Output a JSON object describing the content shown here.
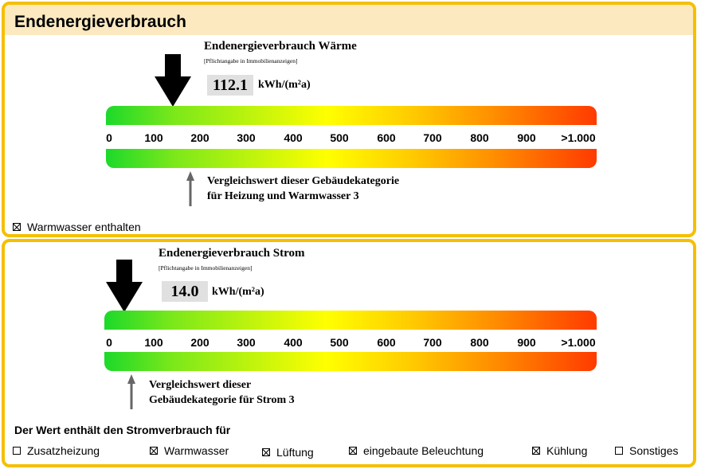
{
  "panel1": {
    "title": "Endenergieverbrauch",
    "heading": "Endenergieverbrauch Wärme",
    "note": "[Pflichtangabe in Immobilienanzeigen]",
    "value": "112.1",
    "unit": "kWh/(m²a)",
    "scale_labels": [
      "0",
      "100",
      "200",
      "300",
      "400",
      "500",
      "600",
      "700",
      "800",
      "900",
      ">1.000"
    ],
    "compare_line1": "Vergleichswert dieser Gebäudekategorie",
    "compare_line2": "für Heizung und Warmwasser 3",
    "warmwasser_label": "Warmwasser enthalten"
  },
  "panel2": {
    "heading": "Endenergieverbrauch Strom",
    "note": "[Pflichtangabe in Immobilienanzeigen]",
    "value": "14.0",
    "unit": "kWh/(m²a)",
    "scale_labels": [
      "0",
      "100",
      "200",
      "300",
      "400",
      "500",
      "600",
      "700",
      "800",
      "900",
      ">1.000"
    ],
    "compare_line1": "Vergleichswert dieser",
    "compare_line2": "Gebäudekategorie für Strom 3",
    "contains_heading": "Der Wert enthält den Stromverbrauch für",
    "options": [
      {
        "label": "Zusatzheizung",
        "checked": false
      },
      {
        "label": "Warmwasser",
        "checked": true
      },
      {
        "label": "Lüftung",
        "checked": true
      },
      {
        "label": "eingebaute Beleuchtung",
        "checked": true
      },
      {
        "label": "Kühlung",
        "checked": true
      },
      {
        "label": "Sonstiges",
        "checked": false
      }
    ]
  },
  "colors": {
    "border": "#f5bf00",
    "header_bg": "#fce9c0",
    "value_box": "#e0e0e0",
    "gradient_start": "#1cd92a",
    "gradient_end": "#ff3a00"
  },
  "icons": [
    "value-arrow-icon",
    "compare-arrow-icon",
    "checkbox-icon"
  ]
}
